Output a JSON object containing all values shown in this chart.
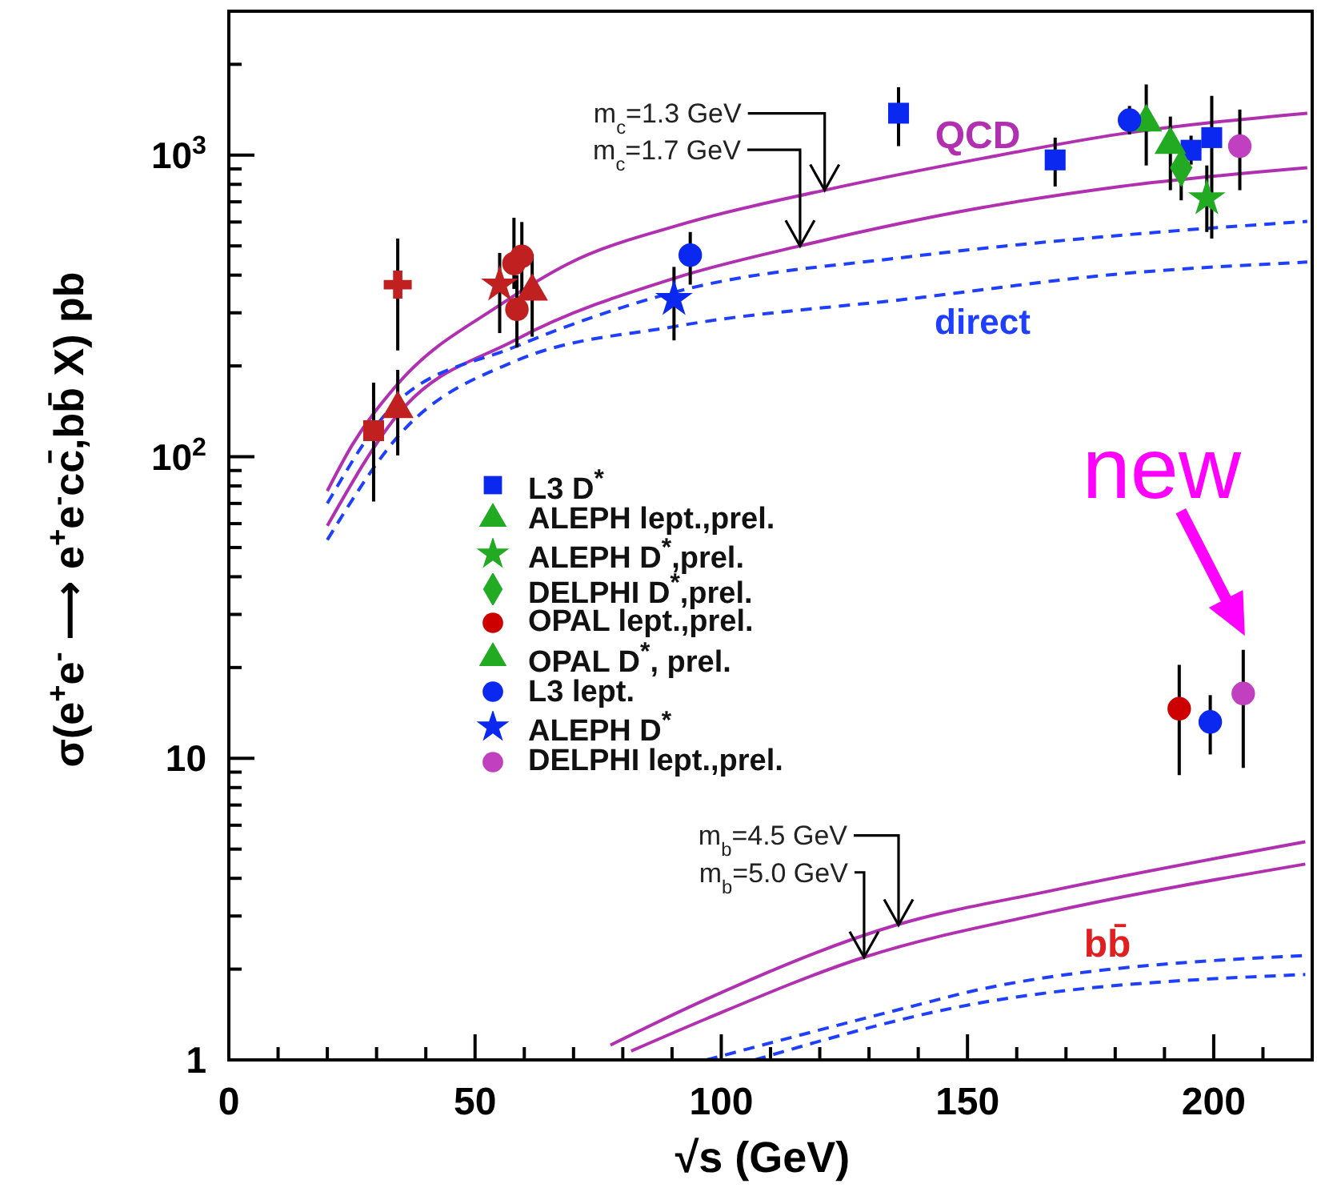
{
  "chart_data": {
    "type": "scatter",
    "xlabel": "√s (GeV)",
    "ylabel": "σ(e$^{+}$e$^{-}$ ⟶ e$^{+}$e$^{-}$cc̄,bb̄ X) pb",
    "xlim": [
      0,
      220
    ],
    "ylim": [
      1,
      3000
    ],
    "log": "y",
    "legend": "left",
    "xticks": [
      0,
      {
        "value": 10,
        "label": null
      },
      {
        "value": 20,
        "label": null
      },
      {
        "value": 30,
        "label": null
      },
      {
        "value": 40,
        "label": null
      },
      50,
      {
        "value": 60,
        "label": null
      },
      {
        "value": 70,
        "label": null
      },
      {
        "value": 80,
        "label": null
      },
      {
        "value": 90,
        "label": null
      },
      100,
      {
        "value": 110,
        "label": null
      },
      {
        "value": 120,
        "label": null
      },
      {
        "value": 130,
        "label": null
      },
      {
        "value": 140,
        "label": null
      },
      150,
      {
        "value": 160,
        "label": null
      },
      {
        "value": 170,
        "label": null
      },
      {
        "value": 180,
        "label": null
      },
      {
        "value": 190,
        "label": null
      },
      200,
      {
        "value": 210,
        "label": null
      }
    ],
    "yticks": [
      1,
      {
        "value": 2,
        "label": null
      },
      {
        "value": 3,
        "label": null
      },
      {
        "value": 4,
        "label": null
      },
      {
        "value": 5,
        "label": null
      },
      {
        "value": 6,
        "label": null
      },
      {
        "value": 7,
        "label": null
      },
      {
        "value": 8,
        "label": null
      },
      {
        "value": 9,
        "label": null
      },
      10,
      {
        "value": 20,
        "label": null
      },
      {
        "value": 30,
        "label": null
      },
      {
        "value": 40,
        "label": null
      },
      {
        "value": 50,
        "label": null
      },
      {
        "value": 60,
        "label": null
      },
      {
        "value": 70,
        "label": null
      },
      {
        "value": 80,
        "label": null
      },
      {
        "value": 90,
        "label": null
      },
      {
        "value": 100,
        "label": "10$^{2}$"
      },
      {
        "value": 200,
        "label": null
      },
      {
        "value": 300,
        "label": null
      },
      {
        "value": 400,
        "label": null
      },
      {
        "value": 500,
        "label": null
      },
      {
        "value": 600,
        "label": null
      },
      {
        "value": 700,
        "label": null
      },
      {
        "value": 800,
        "label": null
      },
      {
        "value": 900,
        "label": null
      },
      {
        "value": 1000,
        "label": "10$^{3}$"
      },
      {
        "value": 2000,
        "label": null
      }
    ],
    "annotations": [
      "QCD",
      "direct",
      "bb̄",
      {
        "text": "m$_{c}$=1.3 GeV",
        "x": 121,
        "y": 765
      },
      {
        "text": "m$_{c}$=1.7 GeV",
        "x": 116,
        "y": 500
      },
      {
        "text": "m$_{b}$=4.5 GeV",
        "x": 136,
        "y": 2.8
      },
      {
        "text": "m$_{b}$=5.0 GeV",
        "x": 129,
        "y": 2.19
      },
      {
        "text": "new",
        "x": 206,
        "y": 16.4
      }
    ],
    "series": [
      {
        "type": "line",
        "color": "#b030b0",
        "line_style": "solid",
        "x": [
          20,
          25,
          34,
          55,
          69,
          91.4,
          121,
          153,
          181,
          219
        ],
        "values": [
          77,
          109,
          172,
          318,
          437,
          586,
          765,
          975,
          1175,
          1377
        ]
      },
      {
        "type": "line",
        "color": "#b030b0",
        "line_style": "solid",
        "x": [
          20,
          34,
          58,
          91,
          116,
          153,
          181,
          219
        ],
        "values": [
          59,
          136,
          243,
          393,
          500,
          670,
          787,
          908
        ]
      },
      {
        "type": "line",
        "color": "#1f3fff",
        "line_style": "dashed",
        "x": [
          20,
          34,
          58,
          91,
          139,
          181,
          219
        ],
        "values": [
          70,
          151,
          231,
          353,
          462,
          542,
          603
        ]
      },
      {
        "type": "line",
        "color": "#1f3fff",
        "line_style": "dashed",
        "x": [
          20,
          34,
          58,
          91,
          139,
          181,
          219
        ],
        "values": [
          53,
          115,
          207,
          271,
          335,
          404,
          442
        ]
      },
      {
        "type": "line",
        "color": "#b030b0",
        "line_style": "solid",
        "x": [
          77.5,
          97,
          135.5,
          167,
          218.6
        ],
        "values": [
          1.12,
          1.59,
          2.8,
          3.64,
          5.29
        ]
      },
      {
        "type": "line",
        "color": "#b030b0",
        "line_style": "solid",
        "x": [
          81.7,
          97,
          129,
          167,
          218.6
        ],
        "values": [
          1.07,
          1.37,
          2.19,
          3.1,
          4.46
        ]
      },
      {
        "type": "line",
        "color": "#1f3fff",
        "line_style": "dashed",
        "x": [
          97,
          139,
          153,
          218.6
        ],
        "values": [
          1.0,
          1.51,
          1.72,
          2.22
        ]
      },
      {
        "type": "line",
        "color": "#1f3fff",
        "line_style": "dashed",
        "x": [
          106.8,
          153,
          218.6
        ],
        "values": [
          1.0,
          1.55,
          1.92
        ]
      },
      {
        "color": "#c02020",
        "marker": "square",
        "x": [
          29.4
        ],
        "values": [
          122
        ],
        "errors": [
          [
            71,
            176
          ]
        ]
      },
      {
        "color": "#c02020",
        "marker": "triangle",
        "x": [
          34.3,
          61.6
        ],
        "values": [
          144,
          353
        ],
        "errors": [
          [
            101,
            194
          ],
          [
            250,
            470
          ]
        ]
      },
      {
        "color": "#c02020",
        "marker": "cross",
        "x": [
          34.3
        ],
        "values": [
          372
        ],
        "errors": [
          [
            225,
            529
          ]
        ]
      },
      {
        "color": "#c02020",
        "marker": "star",
        "x": [
          55
        ],
        "values": [
          372
        ],
        "errors": [
          [
            257,
            474
          ]
        ]
      },
      {
        "color": "#c02020",
        "marker": "circle",
        "x": [
          57.9,
          59.5,
          58.5
        ],
        "values": [
          437,
          462,
          308
        ],
        "errors": [
          [
            360,
            620
          ],
          [
            330,
            600
          ],
          [
            230,
            400
          ]
        ]
      },
      {
        "name": "L3 D$^{*}$",
        "color": "#0a28f0",
        "marker": "square",
        "x": [
          136,
          167.8,
          195.4,
          199.6
        ],
        "values": [
          1377,
          964,
          1038,
          1143
        ],
        "errors": [
          [
            1071,
            1680
          ],
          [
            787,
            1143
          ],
          [
            930,
            1160
          ],
          [
            529,
            1573
          ]
        ]
      },
      {
        "name": "ALEPH lept.,prel.",
        "color": "#22aa22",
        "marker": "triangle",
        "x": [
          186.3
        ],
        "values": [
          1285
        ],
        "errors": [
          [
            924,
            1715
          ]
        ]
      },
      {
        "name": "ALEPH D$^{*}$,prel.",
        "color": "#22aa22",
        "marker": "star",
        "x": [
          198.6
        ],
        "values": [
          718
        ],
        "errors": [
          [
            556,
            924
          ]
        ]
      },
      {
        "name": "DELPHI D$^{*}$,prel.",
        "color": "#22aa22",
        "marker": "diamond",
        "x": [
          193.4
        ],
        "values": [
          908
        ],
        "errors": [
          [
            708,
            1059
          ]
        ]
      },
      {
        "name": "OPAL lept.,prel.",
        "color": "#cc0000",
        "marker": "circle",
        "x": [
          193
        ],
        "values": [
          14.6
        ],
        "errors": [
          [
            8.8,
            20.4
          ]
        ]
      },
      {
        "name": "OPAL D$^{*}$, prel.",
        "color": "#22aa22",
        "marker": "triangle",
        "x": [
          191.2
        ],
        "values": [
          1083
        ],
        "errors": [
          [
            765,
            1342
          ]
        ]
      },
      {
        "name": "L3 lept.",
        "color": "#0a28f0",
        "marker": "circle",
        "x": [
          93.7,
          182.9,
          199.3
        ],
        "values": [
          466,
          1306,
          13.2
        ],
        "errors": [
          [
            372,
            556
          ],
          [
            1172,
            1455
          ],
          [
            10.3,
            16.2
          ]
        ]
      },
      {
        "name": "ALEPH D$^{*}$",
        "color": "#0a28f0",
        "marker": "star",
        "x": [
          90.4
        ],
        "values": [
          333
        ],
        "errors": [
          [
            243,
            426
          ]
        ]
      },
      {
        "name": "DELPHI lept.,prel.",
        "color": "#c040c0",
        "marker": "circle",
        "x": [
          205.3,
          206
        ],
        "values": [
          1071,
          16.4
        ],
        "errors": [
          [
            765,
            1416
          ],
          [
            9.3,
            22.9
          ]
        ]
      }
    ]
  }
}
